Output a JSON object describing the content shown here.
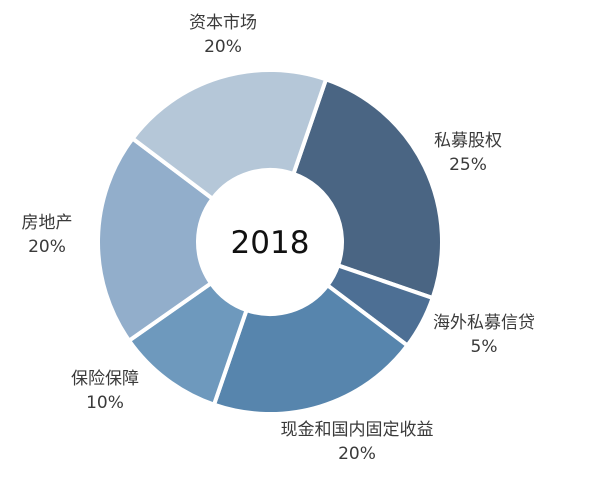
{
  "chart_data": {
    "type": "donut",
    "center_label": "2018",
    "slices": [
      {
        "label": "私募股权",
        "value": 25,
        "value_label": "25%",
        "color": "#4a6583"
      },
      {
        "label": "海外私募信贷",
        "value": 5,
        "value_label": "5%",
        "color": "#4d6f94"
      },
      {
        "label": "现金和国内固定收益",
        "value": 20,
        "value_label": "20%",
        "color": "#5785ad"
      },
      {
        "label": "保险保障",
        "value": 10,
        "value_label": "10%",
        "color": "#6e99bd"
      },
      {
        "label": "房地产",
        "value": 20,
        "value_label": "20%",
        "color": "#92aecb"
      },
      {
        "label": "资本市场",
        "value": 20,
        "value_label": "20%",
        "color": "#b5c7d8"
      }
    ]
  }
}
